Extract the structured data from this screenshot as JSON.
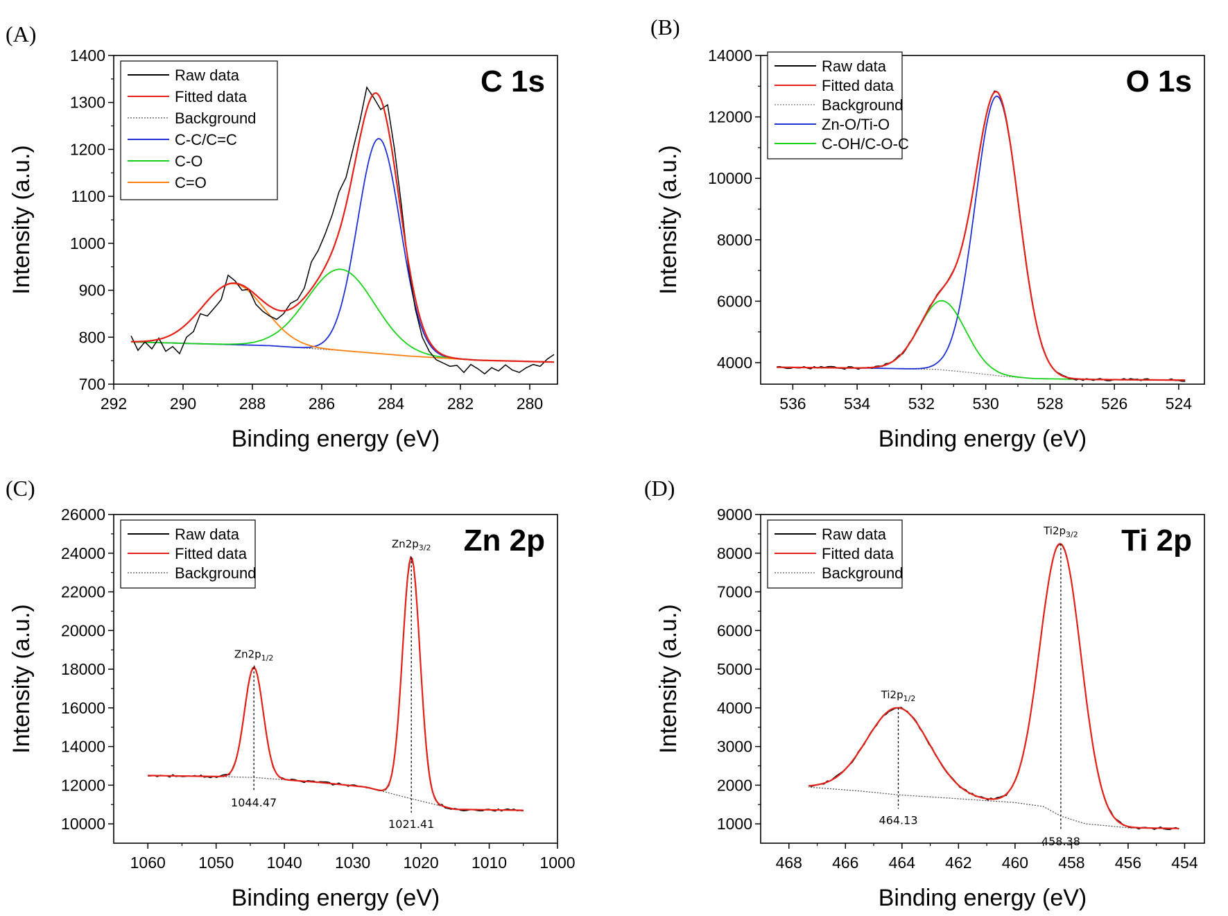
{
  "chart_data": [
    {
      "panel": "(A)",
      "type": "line",
      "title": "C 1s",
      "xlabel": "Binding energy (eV)",
      "ylabel": "Intensity (a.u.)",
      "xlim": [
        292,
        279.2
      ],
      "ylim": [
        700,
        1400
      ],
      "xticks": [
        292,
        290,
        288,
        286,
        284,
        282,
        280
      ],
      "yticks": [
        700,
        800,
        900,
        1000,
        1100,
        1200,
        1300,
        1400
      ],
      "legend": [
        "Raw data",
        "Fitted data",
        "Background",
        "C-C/C=C",
        "C-O",
        "C=O"
      ],
      "legend_position": "top-left",
      "background": {
        "x": [
          291.5,
          289.5,
          287.5,
          285.5,
          283.5,
          281.5,
          279.3
        ],
        "y": [
          790,
          786,
          782,
          772,
          760,
          751,
          747
        ]
      },
      "peaks": [
        {
          "name": "C-C/C=C",
          "center": 284.35,
          "fwhm": 1.45,
          "height": 458
        },
        {
          "name": "C-O",
          "center": 285.45,
          "fwhm": 2.3,
          "height": 173
        },
        {
          "name": "C=O",
          "center": 288.55,
          "fwhm": 2.1,
          "height": 130
        }
      ],
      "raw_data": {
        "x": [
          291.5,
          291.3,
          291.1,
          290.9,
          290.7,
          290.5,
          290.3,
          290.1,
          289.9,
          289.7,
          289.5,
          289.3,
          289.1,
          288.9,
          288.7,
          288.5,
          288.3,
          288.1,
          287.9,
          287.7,
          287.5,
          287.3,
          287.1,
          286.9,
          286.7,
          286.5,
          286.3,
          286.1,
          285.9,
          285.7,
          285.5,
          285.3,
          285.1,
          284.9,
          284.7,
          284.5,
          284.3,
          284.1,
          283.9,
          283.7,
          283.5,
          283.3,
          283.1,
          282.9,
          282.7,
          282.5,
          282.3,
          282.1,
          281.9,
          281.7,
          281.5,
          281.3,
          281.1,
          280.9,
          280.7,
          280.5,
          280.3,
          280.1,
          279.9,
          279.7,
          279.5,
          279.3
        ],
        "y": [
          803,
          772,
          790,
          775,
          798,
          770,
          780,
          765,
          800,
          812,
          850,
          845,
          862,
          880,
          932,
          920,
          900,
          902,
          870,
          855,
          845,
          838,
          850,
          872,
          880,
          905,
          960,
          985,
          1020,
          1060,
          1110,
          1140,
          1200,
          1260,
          1332,
          1310,
          1285,
          1295,
          1200,
          1080,
          950,
          860,
          800,
          770,
          752,
          745,
          738,
          740,
          725,
          742,
          733,
          722,
          735,
          728,
          741,
          730,
          725,
          735,
          742,
          738,
          753,
          763
        ]
      },
      "color_raw": "#000000",
      "color_fit": "#e32119",
      "color_background": "#555555",
      "color_components": [
        "#1f2fd6",
        "#19d119",
        "#ff7f0e"
      ]
    },
    {
      "panel": "(B)",
      "type": "line",
      "title": "O 1s",
      "xlabel": "Binding energy (eV)",
      "ylabel": "Intensity (a.u.)",
      "xlim": [
        537,
        523.2
      ],
      "ylim": [
        3300,
        14000
      ],
      "xticks": [
        536,
        534,
        532,
        530,
        528,
        526,
        524
      ],
      "yticks": [
        4000,
        6000,
        8000,
        10000,
        12000,
        14000
      ],
      "legend": [
        "Raw data",
        "Fitted data",
        "Background",
        "Zn-O/Ti-O",
        "C-OH/C-O-C"
      ],
      "legend_position": "top-left",
      "background": {
        "x": [
          536.5,
          533.5,
          531.5,
          530.5,
          529.5,
          528.5,
          526.5,
          523.8
        ],
        "y": [
          3850,
          3820,
          3780,
          3680,
          3560,
          3480,
          3450,
          3430
        ]
      },
      "peaks": [
        {
          "name": "Zn-O/Ti-O",
          "center": 529.65,
          "fwhm": 1.6,
          "height": 9100
        },
        {
          "name": "C-OH/C-O-C",
          "center": 531.35,
          "fwhm": 1.7,
          "height": 2250
        }
      ],
      "color_raw": "#000000",
      "color_fit": "#e32119",
      "color_background": "#777777",
      "color_components": [
        "#1f2fd6",
        "#19d119"
      ]
    },
    {
      "panel": "(C)",
      "type": "line",
      "title": "Zn 2p",
      "xlabel": "Binding energy (eV)",
      "ylabel": "Intensity (a.u.)",
      "xlim": [
        1065,
        1000
      ],
      "ylim": [
        9000,
        26000
      ],
      "xticks": [
        1060,
        1050,
        1040,
        1030,
        1020,
        1010,
        1000
      ],
      "yticks": [
        10000,
        12000,
        14000,
        16000,
        18000,
        20000,
        22000,
        24000,
        26000
      ],
      "legend": [
        "Raw data",
        "Fitted data",
        "Background"
      ],
      "legend_position": "top-left",
      "background": {
        "x": [
          1060,
          1050,
          1044.5,
          1035,
          1028,
          1021.4,
          1015,
          1005
        ],
        "y": [
          12500,
          12450,
          12400,
          12150,
          11900,
          11300,
          10750,
          10700
        ]
      },
      "peaks": [
        {
          "name": "Zn2p1/2",
          "label": "Zn2p",
          "sub": "1/2",
          "center": 1044.47,
          "fwhm": 3.2,
          "height": 5700,
          "value_label": "1044.47"
        },
        {
          "name": "Zn2p3/2",
          "label": "Zn2p",
          "sub": "3/2",
          "center": 1021.41,
          "fwhm": 3.0,
          "height": 12500,
          "value_label": "1021.41"
        }
      ],
      "color_raw": "#000000",
      "color_fit": "#e32119",
      "color_background": "#555555"
    },
    {
      "panel": "(D)",
      "type": "line",
      "title": "Ti 2p",
      "xlabel": "Binding energy (eV)",
      "ylabel": "Intensity (a.u.)",
      "xlim": [
        469,
        453.3
      ],
      "ylim": [
        500,
        9000
      ],
      "xticks": [
        468,
        466,
        464,
        462,
        460,
        458,
        456,
        454
      ],
      "yticks": [
        1000,
        2000,
        3000,
        4000,
        5000,
        6000,
        7000,
        8000,
        9000
      ],
      "legend": [
        "Raw data",
        "Fitted data",
        "Background"
      ],
      "legend_position": "top-left",
      "background": {
        "x": [
          467.3,
          465.5,
          464.13,
          462,
          460,
          459,
          458.38,
          457.5,
          456,
          454.2
        ],
        "y": [
          1950,
          1850,
          1750,
          1650,
          1550,
          1450,
          1200,
          1000,
          900,
          880
        ]
      },
      "peaks": [
        {
          "name": "Ti2p1/2",
          "label": "Ti2p",
          "sub": "1/2",
          "center": 464.13,
          "fwhm": 2.6,
          "height": 2250,
          "value_label": "464.13"
        },
        {
          "name": "Ti2p3/2",
          "label": "Ti2p",
          "sub": "3/2",
          "center": 458.38,
          "fwhm": 1.7,
          "height": 7040,
          "value_label": "458.38"
        }
      ],
      "color_raw": "#000000",
      "color_fit": "#e32119",
      "color_background": "#555555"
    }
  ]
}
